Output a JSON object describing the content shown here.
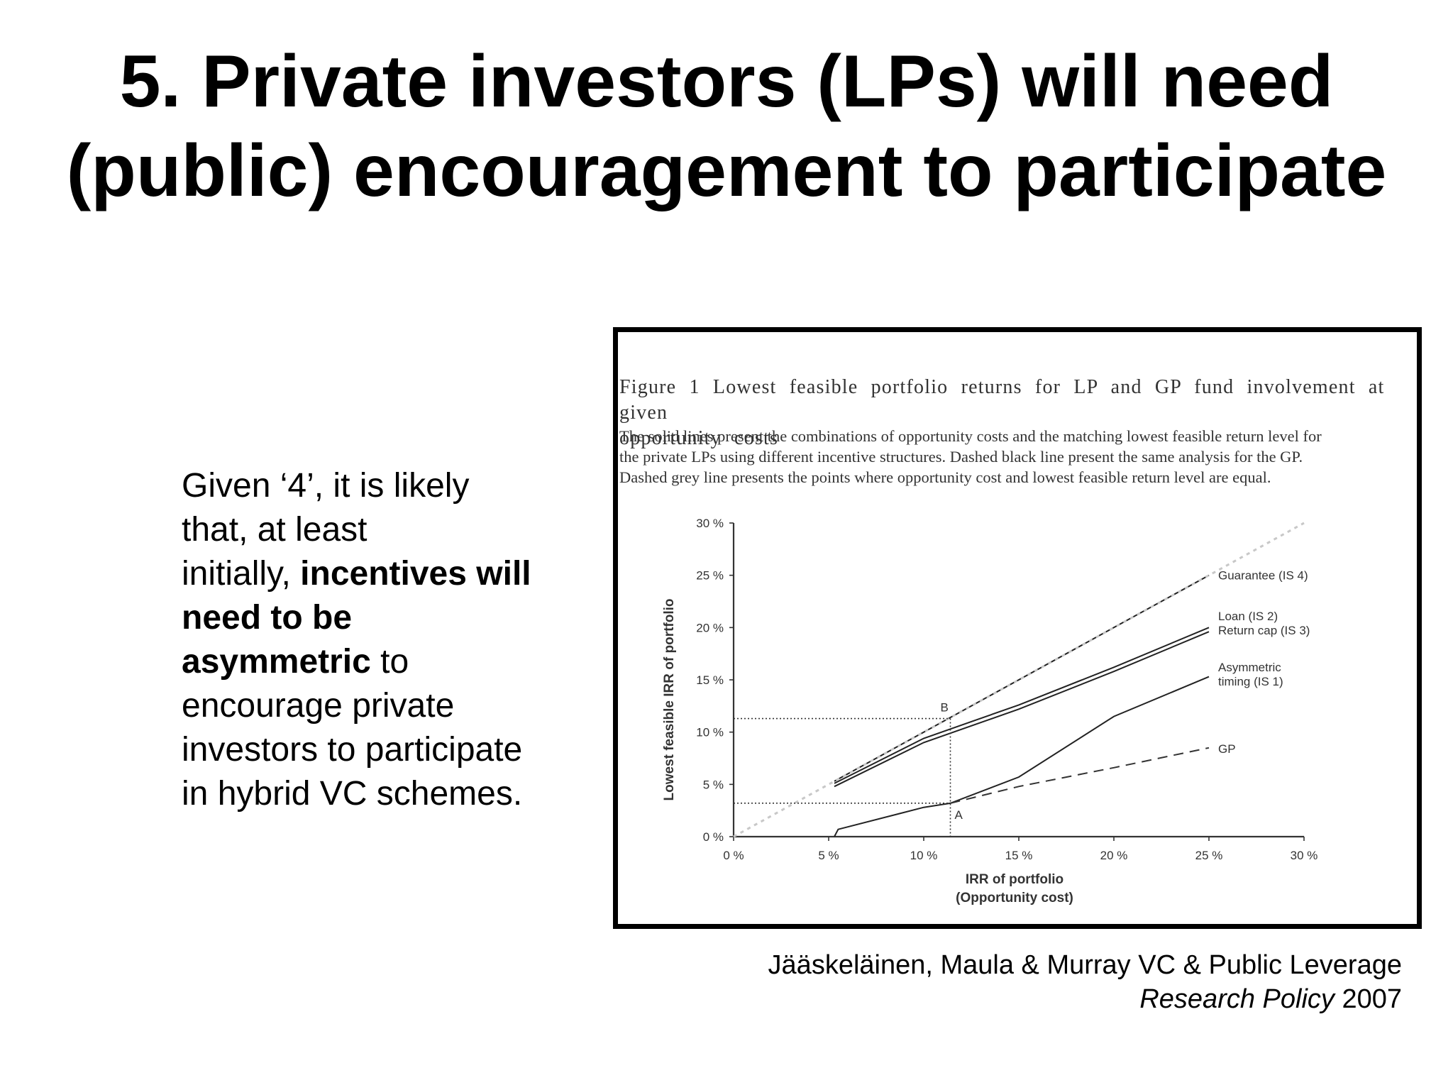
{
  "slide": {
    "title_line1": "5. Private investors (LPs) will need",
    "title_line2": "(public) encouragement to participate"
  },
  "body": {
    "line1": "Given ‘4’, it is likely",
    "line2": "that, at least",
    "line3_plain": "initially, ",
    "line3_bold": "incentives will",
    "line4_bold": "need to be",
    "line5_bold": "asymmetric",
    "line5_plain": " to",
    "line6": "encourage private",
    "line7": "investors to participate",
    "line8": "in hybrid VC schemes."
  },
  "figure": {
    "caption_title_line1": "Figure 1 Lowest feasible portfolio returns for LP and GP fund involvement at given",
    "caption_title_line2": "opportunity costs",
    "caption_note_line1": "The solid lines present the combinations of opportunity costs and the matching lowest feasible return level for",
    "caption_note_line2": "the private LPs using different incentive structures. Dashed black line present the same analysis for the GP.",
    "caption_note_line3": "Dashed grey line presents the points where opportunity cost and lowest feasible return level are equal."
  },
  "citation": {
    "line1": "Jääskeläinen, Maula & Murray VC & Public Leverage",
    "line2_italic": "Research Policy",
    "line2_year": " 2007"
  },
  "chart_data": {
    "type": "line",
    "xlabel_line1": "IRR of portfolio",
    "xlabel_line2": "(Opportunity cost)",
    "ylabel": "Lowest feasible IRR of portfolio",
    "xlim": [
      0,
      30
    ],
    "ylim": [
      0,
      30
    ],
    "x_ticks": [
      "0 %",
      "5 %",
      "10 %",
      "15 %",
      "20 %",
      "25 %",
      "30 %"
    ],
    "y_ticks": [
      "0 %",
      "5 %",
      "10 %",
      "15 %",
      "20 %",
      "25 %",
      "30 %"
    ],
    "grid": false,
    "colors": {
      "solid": "#222222",
      "gp": "#333333",
      "equality": "#c8c8c8",
      "guide": "#333333"
    },
    "series": [
      {
        "name": "Guarantee (IS 4)",
        "style": "solid",
        "x": [
          5.3,
          10,
          15,
          20,
          25
        ],
        "y": [
          5.3,
          10,
          15,
          20,
          25
        ]
      },
      {
        "name": "Loan (IS 2)",
        "style": "solid",
        "x": [
          5.3,
          10,
          15,
          20,
          25
        ],
        "y": [
          5.1,
          9.4,
          12.6,
          16.2,
          20
        ]
      },
      {
        "name": "Return cap (IS 3)",
        "style": "solid",
        "x": [
          5.3,
          10,
          15,
          20,
          25
        ],
        "y": [
          4.8,
          9,
          12.2,
          15.8,
          19.6
        ]
      },
      {
        "name": "Asymmetric timing (IS 1)",
        "style": "solid",
        "x": [
          5.3,
          5.5,
          10,
          11.4,
          15,
          20,
          25
        ],
        "y": [
          0,
          0.7,
          2.8,
          3.2,
          5.7,
          11.5,
          15.3
        ]
      },
      {
        "name": "GP",
        "style": "dashed",
        "x": [
          11.4,
          15,
          20,
          25
        ],
        "y": [
          3.2,
          4.8,
          6.6,
          8.5
        ]
      },
      {
        "name": "",
        "style": "equality",
        "x": [
          0,
          30
        ],
        "y": [
          0,
          30
        ]
      }
    ],
    "annotations": [
      {
        "label": "A",
        "x": 11.4,
        "y": 3.2
      },
      {
        "label": "B",
        "x": 11.4,
        "y": 11.3
      }
    ]
  }
}
